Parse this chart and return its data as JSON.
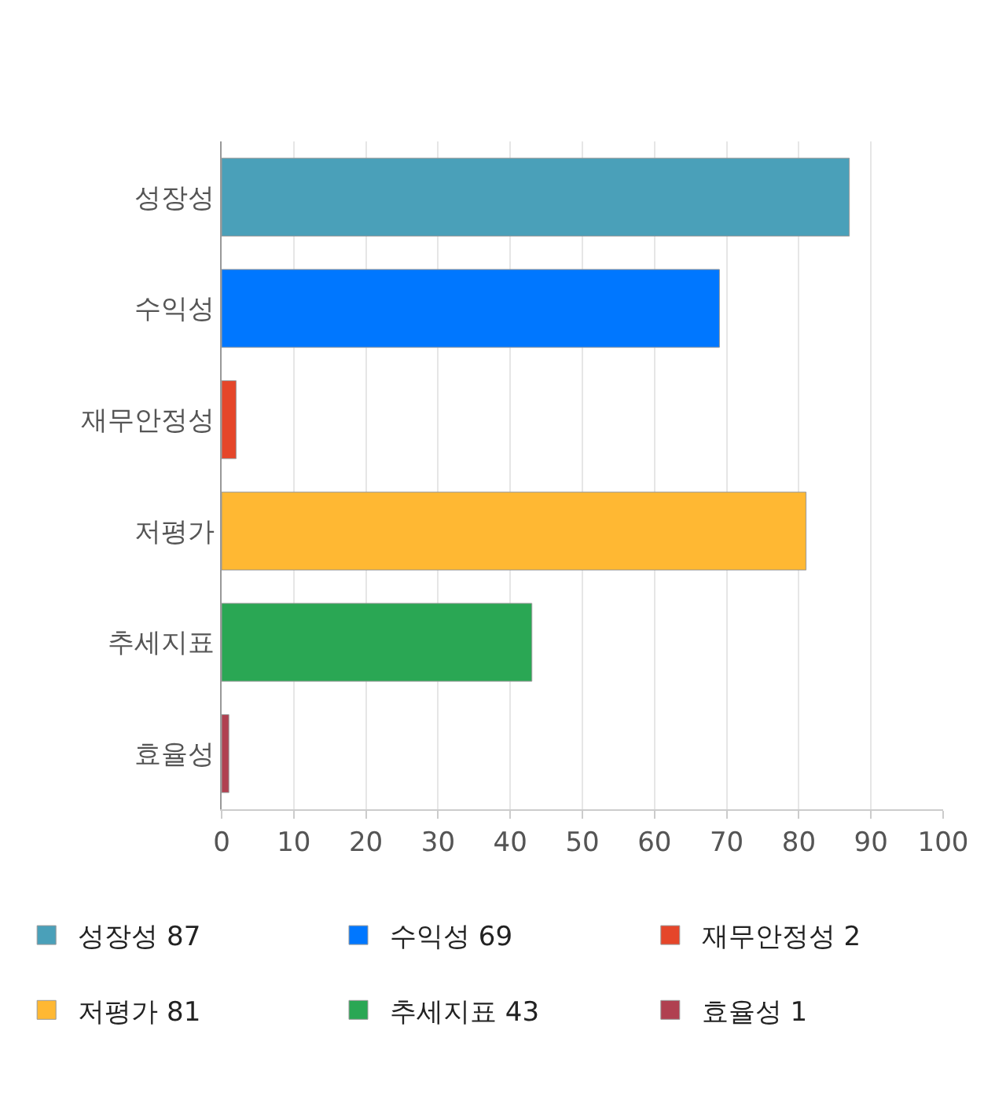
{
  "chart_data": {
    "type": "bar",
    "orientation": "horizontal",
    "categories": [
      "성장성",
      "수익성",
      "재무안정성",
      "저평가",
      "추세지표",
      "효율성"
    ],
    "series": [
      {
        "name": "성장성 87",
        "color": "#4aa0b9",
        "values": [
          87,
          null,
          null,
          null,
          null,
          null
        ]
      },
      {
        "name": "수익성 69",
        "color": "#0077ff",
        "values": [
          null,
          69,
          null,
          null,
          null,
          null
        ]
      },
      {
        "name": "재무안정성 2",
        "color": "#e5462a",
        "values": [
          null,
          null,
          2,
          null,
          null,
          null
        ]
      },
      {
        "name": "저평가 81",
        "color": "#ffb833",
        "values": [
          null,
          null,
          null,
          81,
          null,
          null
        ]
      },
      {
        "name": "추세지표 43",
        "color": "#2aa754",
        "values": [
          null,
          null,
          null,
          null,
          43,
          null
        ]
      },
      {
        "name": "효율성 1",
        "color": "#b04050",
        "values": [
          null,
          null,
          null,
          null,
          null,
          1
        ]
      }
    ],
    "xlim": [
      0,
      100
    ],
    "xticks": [
      0,
      10,
      20,
      30,
      40,
      50,
      60,
      70,
      80,
      90,
      100
    ],
    "grid": "x",
    "legend": "bottom"
  }
}
